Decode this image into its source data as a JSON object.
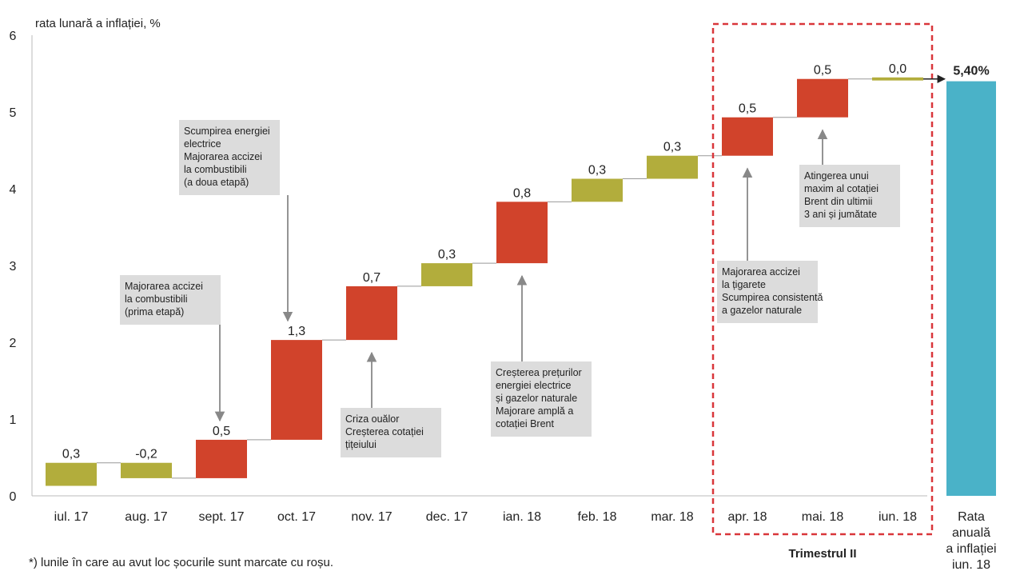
{
  "chart_data": {
    "type": "bar",
    "subtype": "waterfall",
    "ylabel": "rata lunară a inflației, %",
    "ylim": [
      0,
      6
    ],
    "yticks": [
      "0",
      "1",
      "2",
      "3",
      "4",
      "5",
      "6"
    ],
    "grid": false,
    "categories": [
      "iul. 17",
      "aug. 17",
      "sept. 17",
      "oct. 17",
      "nov. 17",
      "dec. 17",
      "ian. 18",
      "feb. 18",
      "mar. 18",
      "apr. 18",
      "mai. 18",
      "iun. 18"
    ],
    "values": [
      0.3,
      -0.2,
      0.5,
      1.3,
      0.7,
      0.3,
      0.8,
      0.3,
      0.3,
      0.5,
      0.5,
      0.0
    ],
    "value_labels": [
      "0,3",
      "-0,2",
      "0,5",
      "1,3",
      "0,7",
      "0,3",
      "0,8",
      "0,3",
      "0,3",
      "0,5",
      "0,5",
      "0,0"
    ],
    "shock": [
      false,
      false,
      true,
      true,
      true,
      false,
      true,
      false,
      false,
      true,
      true,
      false
    ],
    "colors": {
      "shock": "#d1432b",
      "normal": "#b2ad3c",
      "total": "#4ab2c8",
      "highlight": "#d9363a",
      "annotation_bg": "#dcdcdc",
      "arrow": "#888888"
    },
    "total": {
      "value": 5.4,
      "label": "5,40%",
      "category_lines": [
        "Rata",
        "anuală",
        "a inflației",
        "iun. 18"
      ]
    },
    "highlight": {
      "label": "Trimestrul II",
      "from_index": 9,
      "to_index": 11
    },
    "annotations": [
      {
        "lines": [
          "Majorarea accizei",
          "la combustibili",
          "(prima etapă)"
        ],
        "target_index": 2
      },
      {
        "lines": [
          "Scumpirea energiei",
          "electrice",
          "Majorarea accizei",
          "la combustibili",
          "(a doua etapă)"
        ],
        "target_index": 3
      },
      {
        "lines": [
          "Criza ouălor",
          "Creșterea cotației",
          "țițeiului"
        ],
        "target_index": 4
      },
      {
        "lines": [
          "Creșterea prețurilor",
          "energiei electrice",
          "și gazelor naturale",
          "Majorare amplă a",
          "cotației Brent"
        ],
        "target_index": 6
      },
      {
        "lines": [
          "Majorarea accizei",
          "la țigarete",
          "Scumpirea consistentă",
          "a gazelor naturale"
        ],
        "target_index": 9
      },
      {
        "lines": [
          "Atingerea unui",
          "maxim al cotației",
          "Brent din ultimii",
          "3 ani și jumătate"
        ],
        "target_index": 10
      }
    ],
    "footnote": "*) lunile în care au avut loc șocurile sunt marcate cu roșu."
  }
}
